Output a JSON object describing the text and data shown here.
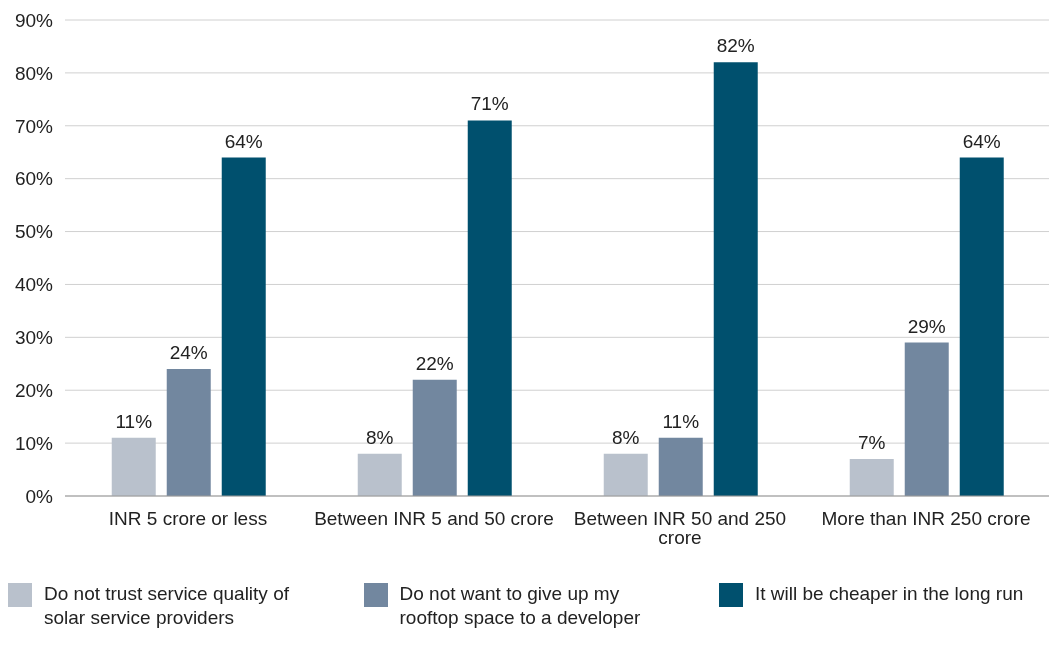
{
  "chart_data": {
    "type": "bar",
    "categories": [
      "INR 5 crore or less",
      "Between INR 5 and 50 crore",
      "Between INR 50 and 250 crore",
      "More than INR 250 crore"
    ],
    "series": [
      {
        "name": "Do not trust service quality of solar service providers",
        "color": "#b9c1cc",
        "values": [
          11,
          8,
          8,
          7
        ],
        "value_labels": [
          "11%",
          "8%",
          "8%",
          "7%"
        ]
      },
      {
        "name": "Do not want to give up my rooftop space to a developer",
        "color": "#72879f",
        "values": [
          24,
          22,
          11,
          29
        ],
        "value_labels": [
          "24%",
          "22%",
          "11%",
          "29%"
        ]
      },
      {
        "name": "It will be cheaper in the long run",
        "color": "#00506e",
        "values": [
          64,
          71,
          82,
          64
        ],
        "value_labels": [
          "64%",
          "71%",
          "82%",
          "64%"
        ]
      }
    ],
    "ylim": [
      0,
      90
    ],
    "yticks": [
      {
        "value": 0,
        "label": "0%"
      },
      {
        "value": 10,
        "label": "10%"
      },
      {
        "value": 20,
        "label": "20%"
      },
      {
        "value": 30,
        "label": "30%"
      },
      {
        "value": 40,
        "label": "40%"
      },
      {
        "value": 50,
        "label": "50%"
      },
      {
        "value": 60,
        "label": "60%"
      },
      {
        "value": 70,
        "label": "70%"
      },
      {
        "value": 80,
        "label": "80%"
      },
      {
        "value": 90,
        "label": "90%"
      }
    ],
    "grid": "y",
    "legend": "bottom"
  }
}
